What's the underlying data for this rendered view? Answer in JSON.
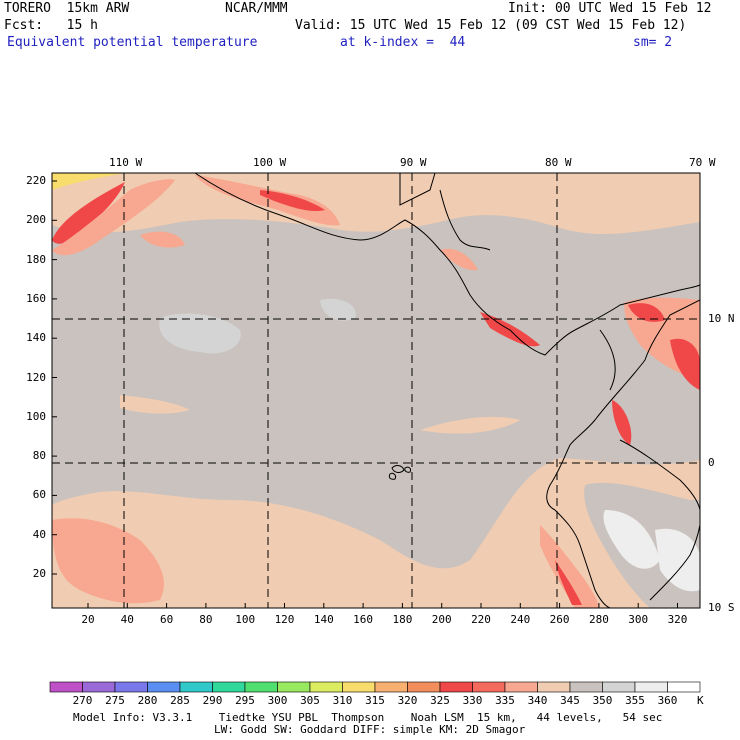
{
  "header": {
    "model": "TORERO  15km ARW",
    "org": "NCAR/MMM",
    "init": "Init: 00 UTC Wed 15 Feb 12",
    "fcst": "Fcst:   15 h",
    "valid": "Valid: 15 UTC Wed 15 Feb 12 (09 CST Wed 15 Feb 12)",
    "field": "Equivalent potential temperature",
    "level": "at k-index =  44",
    "smoothing": "sm= 2"
  },
  "map": {
    "lon_labels": [
      "110 W",
      "100 W",
      "90 W",
      "80 W",
      "70 W"
    ],
    "lat_labels": [
      "10 N",
      "0",
      "10 S"
    ],
    "x_ticks": [
      "20",
      "40",
      "60",
      "80",
      "100",
      "120",
      "140",
      "160",
      "180",
      "200",
      "220",
      "240",
      "260",
      "280",
      "300",
      "320"
    ],
    "y_ticks": [
      "220",
      "200",
      "180",
      "160",
      "140",
      "120",
      "100",
      "80",
      "60",
      "40",
      "20"
    ]
  },
  "colorbar": {
    "labels": [
      "270",
      "275",
      "280",
      "285",
      "290",
      "295",
      "300",
      "305",
      "310",
      "315",
      "320",
      "325",
      "330",
      "335",
      "340",
      "345",
      "350",
      "355",
      "360"
    ],
    "unit": "K",
    "colors": [
      "#c050c8",
      "#9a6ad8",
      "#7a78ea",
      "#5a8ef2",
      "#30c8c8",
      "#30d89c",
      "#50e070",
      "#98e860",
      "#dcec60",
      "#f8dc6c",
      "#f8b070",
      "#f28e5c",
      "#f04848",
      "#f46a5c",
      "#f8a890",
      "#f0ccb2",
      "#c9c2be",
      "#d4d4d4",
      "#eeeeee",
      "#ffffff"
    ]
  },
  "footer": {
    "line1": "Model Info: V3.3.1    Tiedtke YSU PBL  Thompson    Noah LSM  15 km,   44 levels,   54 sec",
    "line2": "LW: Godd SW: Goddard DIFF: simple KM: 2D Smagor"
  }
}
